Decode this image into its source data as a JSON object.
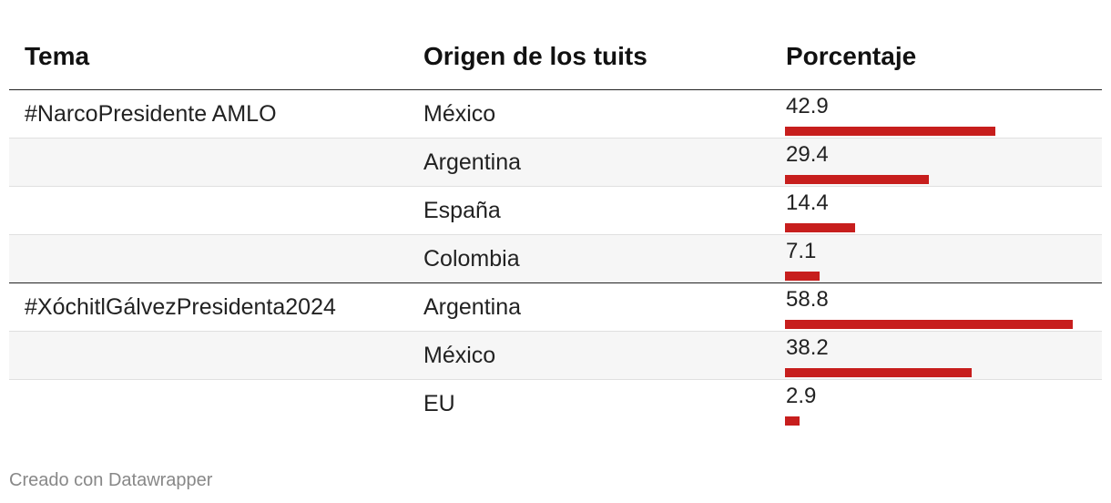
{
  "chart_data": {
    "type": "table",
    "columns": [
      "Tema",
      "Origen de los tuits",
      "Porcentaje"
    ],
    "max_value": 58.8,
    "rows": [
      {
        "tema": "#NarcoPresidente AMLO",
        "origen": "México",
        "porcentaje": 42.9,
        "porcentaje_label": "42.9"
      },
      {
        "tema": "",
        "origen": "Argentina",
        "porcentaje": 29.4,
        "porcentaje_label": "29.4"
      },
      {
        "tema": "",
        "origen": "España",
        "porcentaje": 14.4,
        "porcentaje_label": "14.4"
      },
      {
        "tema": "",
        "origen": "Colombia",
        "porcentaje": 7.1,
        "porcentaje_label": "7.1"
      },
      {
        "tema": "#XóchitlGálvezPresidenta2024",
        "origen": "Argentina",
        "porcentaje": 58.8,
        "porcentaje_label": "58.8"
      },
      {
        "tema": "",
        "origen": "México",
        "porcentaje": 38.2,
        "porcentaje_label": "38.2"
      },
      {
        "tema": "",
        "origen": "EU",
        "porcentaje": 2.9,
        "porcentaje_label": "2.9"
      }
    ],
    "bar_color": "#c71e1d"
  },
  "footer": "Creado con Datawrapper"
}
